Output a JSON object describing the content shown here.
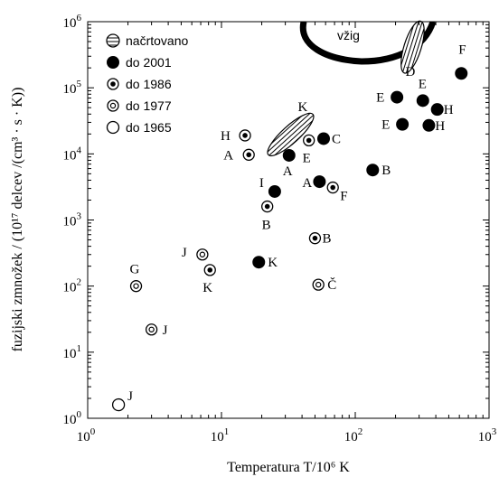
{
  "chart_data": {
    "type": "scatter",
    "xlabel": "Temperatura T/10⁶ K",
    "ylabel": "fuzijski zmnožek / (10¹⁷ delcev /(cm³ · s · K))",
    "xscale": "log",
    "yscale": "log",
    "xlim": [
      1,
      1000
    ],
    "ylim": [
      1,
      1000000
    ],
    "x_ticks": [
      {
        "value": 1,
        "base": "10",
        "exp": "0"
      },
      {
        "value": 10,
        "base": "10",
        "exp": "1"
      },
      {
        "value": 100,
        "base": "10",
        "exp": "2"
      },
      {
        "value": 1000,
        "base": "10",
        "exp": "3"
      }
    ],
    "y_ticks": [
      {
        "value": 1,
        "base": "10",
        "exp": "0"
      },
      {
        "value": 10,
        "base": "10",
        "exp": "1"
      },
      {
        "value": 100,
        "base": "10",
        "exp": "2"
      },
      {
        "value": 1000,
        "base": "10",
        "exp": "3"
      },
      {
        "value": 10000,
        "base": "10",
        "exp": "4"
      },
      {
        "value": 100000,
        "base": "10",
        "exp": "5"
      },
      {
        "value": 1000000,
        "base": "10",
        "exp": "6"
      }
    ],
    "ignition_label": "vžig",
    "legend": [
      {
        "label": "načrtovano",
        "marker": "hatched"
      },
      {
        "label": "do 2001",
        "marker": "filled"
      },
      {
        "label": "do 1986",
        "marker": "dot"
      },
      {
        "label": "do 1977",
        "marker": "ring"
      },
      {
        "label": "do 1965",
        "marker": "open"
      }
    ],
    "planned": [
      {
        "label": "K",
        "x_range": [
          24,
          45
        ],
        "y_range": [
          11000,
          35000
        ]
      },
      {
        "label": "D",
        "x_range": [
          240,
          300
        ],
        "y_range": [
          200000,
          850000
        ]
      }
    ],
    "series": [
      {
        "marker": "filled",
        "points": [
          {
            "x": 620,
            "y": 165000,
            "label": "F"
          },
          {
            "x": 205,
            "y": 72000,
            "label": "E"
          },
          {
            "x": 320,
            "y": 64000,
            "label": "E"
          },
          {
            "x": 410,
            "y": 47000,
            "label": "H"
          },
          {
            "x": 225,
            "y": 28000,
            "label": "E"
          },
          {
            "x": 355,
            "y": 27000,
            "label": "H"
          },
          {
            "x": 58,
            "y": 17000,
            "label": "C"
          },
          {
            "x": 32,
            "y": 9500,
            "label": "A"
          },
          {
            "x": 135,
            "y": 5700,
            "label": "B"
          },
          {
            "x": 54,
            "y": 3800,
            "label": "A"
          },
          {
            "x": 25,
            "y": 2700,
            "label": "I"
          },
          {
            "x": 19,
            "y": 230,
            "label": "K"
          }
        ]
      },
      {
        "marker": "dot",
        "points": [
          {
            "x": 15,
            "y": 19000,
            "label": "H"
          },
          {
            "x": 16,
            "y": 9700,
            "label": "A"
          },
          {
            "x": 45,
            "y": 16000,
            "label": "E"
          },
          {
            "x": 68,
            "y": 3100,
            "label": "F"
          },
          {
            "x": 22,
            "y": 1600,
            "label": "B"
          },
          {
            "x": 50,
            "y": 530,
            "label": "B"
          },
          {
            "x": 8.2,
            "y": 175,
            "label": "K"
          }
        ]
      },
      {
        "marker": "ring",
        "points": [
          {
            "x": 7.2,
            "y": 300,
            "label": "J"
          },
          {
            "x": 2.3,
            "y": 100,
            "label": "G"
          },
          {
            "x": 53,
            "y": 105,
            "label": "Č"
          },
          {
            "x": 3.0,
            "y": 22,
            "label": "J"
          }
        ]
      },
      {
        "marker": "open",
        "points": [
          {
            "x": 1.7,
            "y": 1.6,
            "label": "J"
          }
        ]
      }
    ]
  }
}
